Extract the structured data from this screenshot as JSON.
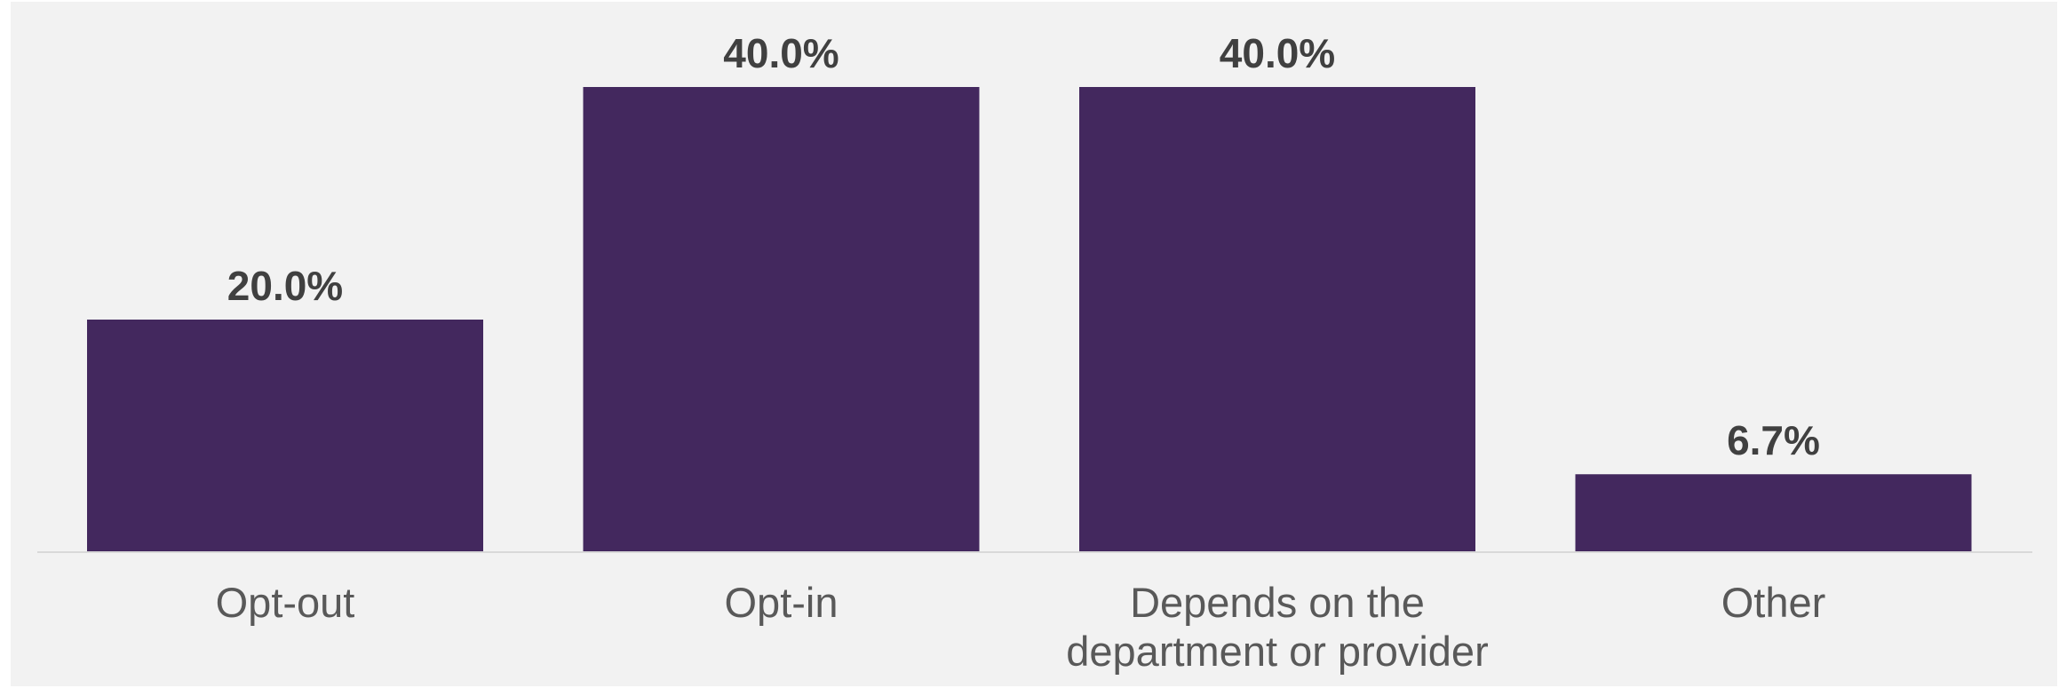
{
  "chart_data": {
    "type": "bar",
    "categories": [
      "Opt-out",
      "Opt-in",
      "Depends on the department or provider",
      "Other"
    ],
    "category_lines": [
      [
        "Opt-out"
      ],
      [
        "Opt-in"
      ],
      [
        "Depends on the",
        "department or provider"
      ],
      [
        "Other"
      ]
    ],
    "values": [
      20.0,
      40.0,
      40.0,
      6.7
    ],
    "value_labels": [
      "20.0%",
      "40.0%",
      "40.0%",
      "6.7%"
    ],
    "unit": "%",
    "ylim": [
      0,
      40
    ],
    "grid": false,
    "legend": "none",
    "colors": {
      "bar": "#43285e",
      "value_text": "#404040",
      "category_text": "#595959",
      "axis_line": "#d9d9d9",
      "background": "#f2f2f2"
    }
  }
}
